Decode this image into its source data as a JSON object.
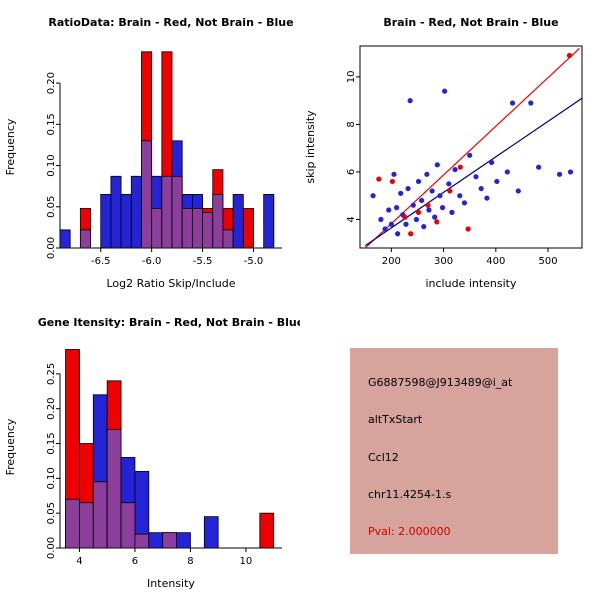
{
  "colors": {
    "red": "#EE0000",
    "blue": "#2424D6",
    "purple": "#8B3E9B",
    "navy": "#00008B",
    "info_bg": "#D6A49D",
    "pval": "#CC0000"
  },
  "chart_data": [
    {
      "type": "bar",
      "title": "RatioData: Brain - Red, Not Brain - Blue",
      "xlabel": "Log2 Ratio Skip/Include",
      "ylabel": "Frequency",
      "xlim": [
        -6.9,
        -4.72
      ],
      "ylim": [
        0,
        0.245
      ],
      "xticks": [
        {
          "v": -6.5,
          "label": "-6.5"
        },
        {
          "v": -6.0,
          "label": "-6.0"
        },
        {
          "v": -5.5,
          "label": "-5.5"
        },
        {
          "v": -5.0,
          "label": "-5.0"
        }
      ],
      "yticks": [
        {
          "v": 0,
          "label": "0.00"
        },
        {
          "v": 0.05,
          "label": "0.05"
        },
        {
          "v": 0.1,
          "label": "0.10"
        },
        {
          "v": 0.15,
          "label": "0.15"
        },
        {
          "v": 0.2,
          "label": "0.20"
        }
      ],
      "binwidth": 0.1,
      "legend_note": "red = Brain, blue = Not Brain, purple = overlap",
      "bins": [
        {
          "x": -6.85,
          "red": 0,
          "blue": 0.022
        },
        {
          "x": -6.65,
          "red": 0.048,
          "blue": 0.022
        },
        {
          "x": -6.45,
          "red": 0,
          "blue": 0.065
        },
        {
          "x": -6.35,
          "red": 0,
          "blue": 0.087
        },
        {
          "x": -6.25,
          "red": 0,
          "blue": 0.065
        },
        {
          "x": -6.15,
          "red": 0,
          "blue": 0.087
        },
        {
          "x": -6.05,
          "red": 0.238,
          "blue": 0.13
        },
        {
          "x": -5.95,
          "red": 0.048,
          "blue": 0.087
        },
        {
          "x": -5.85,
          "red": 0.238,
          "blue": 0.087
        },
        {
          "x": -5.75,
          "red": 0.087,
          "blue": 0.13
        },
        {
          "x": -5.65,
          "red": 0.048,
          "blue": 0.065
        },
        {
          "x": -5.55,
          "red": 0.048,
          "blue": 0.065
        },
        {
          "x": -5.45,
          "red": 0.048,
          "blue": 0.043
        },
        {
          "x": -5.35,
          "red": 0.095,
          "blue": 0.065
        },
        {
          "x": -5.25,
          "red": 0.048,
          "blue": 0.022
        },
        {
          "x": -5.15,
          "red": 0,
          "blue": 0.065
        },
        {
          "x": -5.05,
          "red": 0.048,
          "blue": 0
        },
        {
          "x": -4.85,
          "red": 0,
          "blue": 0.065
        }
      ]
    },
    {
      "type": "scatter",
      "title": "Brain - Red, Not Brain - Blue",
      "xlabel": "include intensity",
      "ylabel": "skip intensity",
      "xlim": [
        140,
        565
      ],
      "ylim": [
        2.8,
        11.3
      ],
      "xticks": [
        {
          "v": 200,
          "label": "200"
        },
        {
          "v": 300,
          "label": "300"
        },
        {
          "v": 400,
          "label": "400"
        },
        {
          "v": 500,
          "label": "500"
        }
      ],
      "yticks": [
        {
          "v": 4,
          "label": "4"
        },
        {
          "v": 6,
          "label": "6"
        },
        {
          "v": 8,
          "label": "8"
        },
        {
          "v": 10,
          "label": "10"
        }
      ],
      "box": true,
      "series": [
        {
          "name": "Not Brain",
          "color": "blue",
          "points": [
            [
              165,
              5.0
            ],
            [
              180,
              4.0
            ],
            [
              188,
              3.6
            ],
            [
              195,
              4.4
            ],
            [
              200,
              3.8
            ],
            [
              205,
              5.9
            ],
            [
              210,
              4.5
            ],
            [
              212,
              3.4
            ],
            [
              218,
              5.1
            ],
            [
              222,
              4.2
            ],
            [
              228,
              3.8
            ],
            [
              232,
              5.3
            ],
            [
              236,
              9.0
            ],
            [
              242,
              4.6
            ],
            [
              248,
              4.0
            ],
            [
              252,
              5.6
            ],
            [
              258,
              4.8
            ],
            [
              262,
              3.7
            ],
            [
              268,
              5.9
            ],
            [
              272,
              4.4
            ],
            [
              278,
              5.2
            ],
            [
              283,
              4.1
            ],
            [
              288,
              6.3
            ],
            [
              293,
              5.0
            ],
            [
              298,
              4.5
            ],
            [
              302,
              9.4
            ],
            [
              310,
              5.5
            ],
            [
              316,
              4.3
            ],
            [
              322,
              6.1
            ],
            [
              331,
              5.0
            ],
            [
              340,
              4.7
            ],
            [
              350,
              6.7
            ],
            [
              362,
              5.8
            ],
            [
              372,
              5.3
            ],
            [
              383,
              4.9
            ],
            [
              392,
              6.4
            ],
            [
              402,
              5.6
            ],
            [
              422,
              6.0
            ],
            [
              432,
              8.9
            ],
            [
              443,
              5.2
            ],
            [
              467,
              8.9
            ],
            [
              482,
              6.2
            ],
            [
              522,
              5.9
            ],
            [
              543,
              6.0
            ]
          ]
        },
        {
          "name": "Brain",
          "color": "red",
          "points": [
            [
              176,
              5.7
            ],
            [
              202,
              5.6
            ],
            [
              226,
              4.1
            ],
            [
              237,
              3.4
            ],
            [
              252,
              4.3
            ],
            [
              270,
              4.6
            ],
            [
              287,
              3.9
            ],
            [
              312,
              5.2
            ],
            [
              332,
              6.2
            ],
            [
              347,
              3.6
            ],
            [
              541,
              10.9
            ]
          ]
        }
      ],
      "lines": [
        {
          "name": "brain-fit",
          "color": "red",
          "x1": 150,
          "y1": 2.8,
          "x2": 560,
          "y2": 11.2
        },
        {
          "name": "notbrain-fit",
          "color": "navy",
          "x1": 150,
          "y1": 2.9,
          "x2": 565,
          "y2": 9.1
        }
      ]
    },
    {
      "type": "bar",
      "title": "Gene Itensity: Brain - Red, Not Brain - Blue",
      "xlabel": "Intensity",
      "ylabel": "Frequency",
      "xlim": [
        3.3,
        11.3
      ],
      "ylim": [
        0,
        0.29
      ],
      "xticks": [
        {
          "v": 4,
          "label": "4"
        },
        {
          "v": 6,
          "label": "6"
        },
        {
          "v": 8,
          "label": "8"
        },
        {
          "v": 10,
          "label": "10"
        }
      ],
      "yticks": [
        {
          "v": 0,
          "label": "0.00"
        },
        {
          "v": 0.05,
          "label": "0.05"
        },
        {
          "v": 0.1,
          "label": "0.10"
        },
        {
          "v": 0.15,
          "label": "0.15"
        },
        {
          "v": 0.2,
          "label": "0.20"
        },
        {
          "v": 0.25,
          "label": "0.25"
        }
      ],
      "binwidth": 0.5,
      "legend_note": "red = Brain, blue = Not Brain, purple = overlap",
      "bins": [
        {
          "x": 3.75,
          "red": 0.285,
          "blue": 0.07
        },
        {
          "x": 4.25,
          "red": 0.15,
          "blue": 0.065
        },
        {
          "x": 4.75,
          "red": 0.095,
          "blue": 0.22
        },
        {
          "x": 5.25,
          "red": 0.24,
          "blue": 0.17
        },
        {
          "x": 5.75,
          "red": 0.065,
          "blue": 0.13
        },
        {
          "x": 6.25,
          "red": 0.02,
          "blue": 0.11
        },
        {
          "x": 6.75,
          "red": 0,
          "blue": 0.022
        },
        {
          "x": 7.25,
          "red": 0.022,
          "blue": 0.022
        },
        {
          "x": 7.75,
          "red": 0,
          "blue": 0.022
        },
        {
          "x": 8.75,
          "red": 0,
          "blue": 0.045
        },
        {
          "x": 10.75,
          "red": 0.05,
          "blue": 0
        }
      ]
    }
  ],
  "info_panel": {
    "lines": [
      "G6887598@J913489@i_at",
      "altTxStart",
      "Ccl12",
      "chr11.4254-1.s"
    ],
    "pval": "Pval: 2.000000"
  }
}
